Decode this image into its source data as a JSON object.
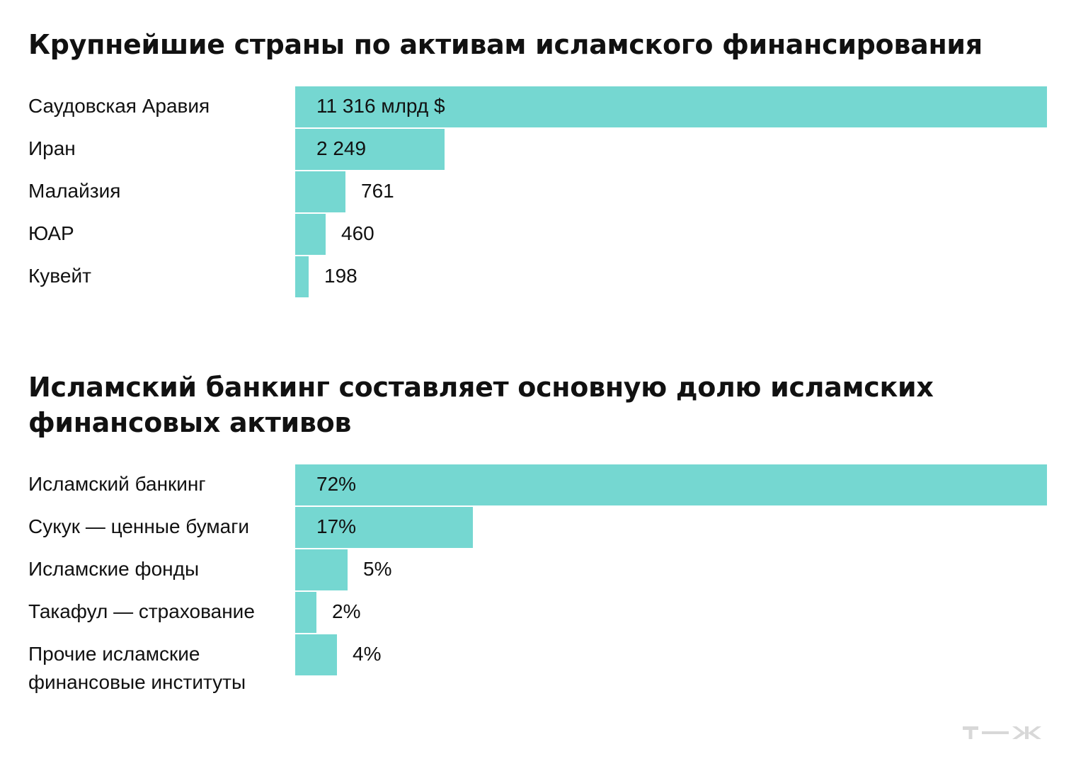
{
  "chart_data": [
    {
      "type": "bar",
      "orientation": "horizontal",
      "title": "Крупнейшие страны по активам исламского финансирования",
      "categories": [
        "Саудовская Аравия",
        "Иран",
        "Малайзия",
        "ЮАР",
        "Кувейт"
      ],
      "values": [
        11316,
        2249,
        761,
        460,
        198
      ],
      "value_labels": [
        "11 316 млрд $",
        "2 249",
        "761",
        "460",
        "198"
      ],
      "unit": "млрд $",
      "xlim": [
        0,
        11316
      ],
      "grid": false,
      "legend": "none",
      "colors": {
        "bar": "#75d7d1"
      }
    },
    {
      "type": "bar",
      "orientation": "horizontal",
      "title": "Исламский банкинг составляет основную долю исламских финансовых активов",
      "categories": [
        "Исламский банкинг",
        "Сукук — ценные бумаги",
        "Исламские фонды",
        "Такафул — страхование",
        "Прочие исламские\nфинансовые институты"
      ],
      "values": [
        72,
        17,
        5,
        2,
        4
      ],
      "value_labels": [
        "72%",
        "17%",
        "5%",
        "2%",
        "4%"
      ],
      "unit": "%",
      "xlim": [
        0,
        72
      ],
      "grid": false,
      "legend": "none",
      "colors": {
        "bar": "#75d7d1"
      }
    }
  ],
  "logo": {
    "name": "tzh-logo",
    "text": "т—ж",
    "color": "#d8d8d8"
  }
}
